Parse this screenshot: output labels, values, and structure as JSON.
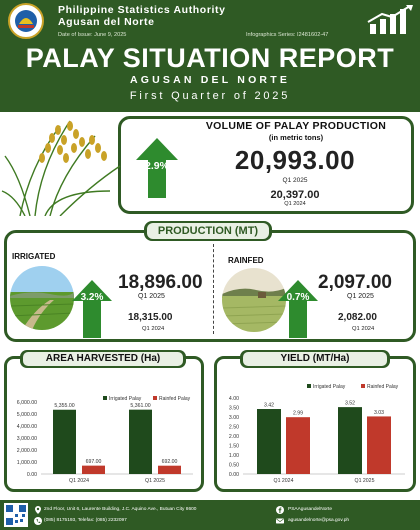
{
  "header": {
    "agency_line1": "Philippine Statistics Authority",
    "agency_line2": "Agusan del Norte",
    "date_of_issue": "Date of Issue: June 9, 2025",
    "series": "Infographics Series: I2481602-47",
    "title": "PALAY SITUATION REPORT",
    "subtitle": "AGUSAN DEL NORTE",
    "quarter": "First Quarter of 2025"
  },
  "volume": {
    "title": "VOLUME OF PALAY PRODUCTION",
    "unit": "(in metric tons)",
    "growth": "2.9%",
    "current_value": "20,993.00",
    "current_label": "Q1 2025",
    "previous_value": "20,397.00",
    "previous_label": "Q1 2024"
  },
  "production": {
    "title": "PRODUCTION (MT)",
    "irrigated": {
      "label": "IRRIGATED",
      "growth": "3.2%",
      "current_value": "18,896.00",
      "current_label": "Q1 2025",
      "previous_value": "18,315.00",
      "previous_label": "Q1 2024"
    },
    "rainfed": {
      "label": "RAINFED",
      "growth": "0.7%",
      "current_value": "2,097.00",
      "current_label": "Q1 2025",
      "previous_value": "2,082.00",
      "previous_label": "Q1 2024"
    }
  },
  "chart_data": [
    {
      "type": "bar",
      "title": "AREA HARVESTED (Ha)",
      "categories": [
        "Q1 2024",
        "Q1 2025"
      ],
      "series": [
        {
          "name": "Irrigated Palay",
          "values": [
            5355,
            5361
          ],
          "labels": [
            "5,355.00",
            "5,361.00"
          ],
          "color": "#1f4a1c"
        },
        {
          "name": "Rainfed Palay",
          "values": [
            697,
            692
          ],
          "labels": [
            "697.00",
            "692.00"
          ],
          "color": "#c0392b"
        }
      ],
      "yticks": [
        "0.00",
        "1,000.00",
        "2,000.00",
        "3,000.00",
        "4,000.00",
        "5,000.00",
        "6,000.00"
      ],
      "ylim": [
        0,
        6000
      ],
      "legend": "top-right",
      "grid": false
    },
    {
      "type": "bar",
      "title": "YIELD (MT/Ha)",
      "categories": [
        "Q1 2024",
        "Q1 2025"
      ],
      "series": [
        {
          "name": "Irrigated Palay",
          "values": [
            3.42,
            3.52
          ],
          "labels": [
            "3.42",
            "3.52"
          ],
          "color": "#1f4a1c"
        },
        {
          "name": "Rainfed Palay",
          "values": [
            2.99,
            3.03
          ],
          "labels": [
            "2.99",
            "3.03"
          ],
          "color": "#c0392b"
        }
      ],
      "yticks": [
        "0.00",
        "0.50",
        "1.00",
        "1.50",
        "2.00",
        "2.50",
        "3.00",
        "3.50",
        "4.00"
      ],
      "ylim": [
        0,
        4
      ],
      "legend": "top",
      "grid": false
    }
  ],
  "footer": {
    "address": "2nd Floor, Unit 6, Laurente Building, J.C. Aquino Ave., Butuan City 8600",
    "phone": "(085) 8175193, Telefax: (085) 2232097",
    "facebook": "PSAAgusandelNorte",
    "email": "agusandelnorte@psa.gov.ph"
  },
  "colors": {
    "brand_green": "#2f5a24",
    "irrigated": "#1f4a1c",
    "rainfed": "#c0392b",
    "arrow_green": "#2e8b2e"
  }
}
